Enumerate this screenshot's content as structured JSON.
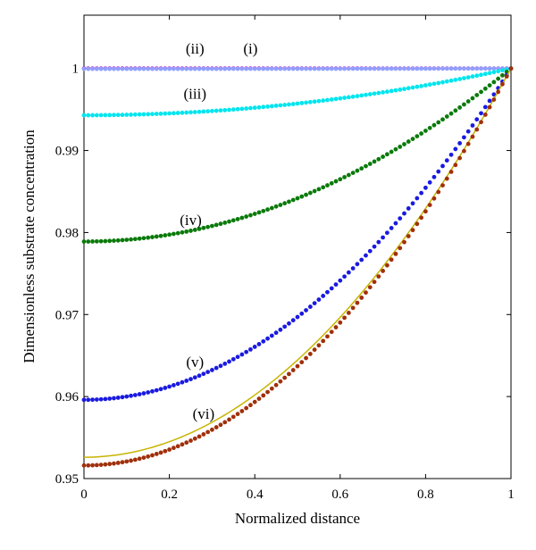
{
  "chart_data": {
    "type": "scatter",
    "title": "",
    "xlabel": "Normalized distance",
    "ylabel": "Dimensionless substrate concentration",
    "xlim": [
      0,
      1
    ],
    "ylim": [
      0.95,
      1.0065
    ],
    "xticks": [
      "0",
      "0.2",
      "0.4",
      "0.6",
      "0.8",
      "1"
    ],
    "yticks": [
      "0.95",
      "0.96",
      "0.97",
      "0.98",
      "0.99",
      "1"
    ],
    "grid": false,
    "legend": "none",
    "series": [
      {
        "name": "(i)",
        "style": "dots",
        "color": "#c020c0",
        "x": [
          0,
          1
        ],
        "y": [
          1.0,
          1.0
        ],
        "shape": "linear"
      },
      {
        "name": "(ii)",
        "style": "dots",
        "color": "#90a0ff",
        "x": [
          0,
          1
        ],
        "y": [
          0.99995,
          1.0
        ],
        "shape": "parabolic"
      },
      {
        "name": "(iii)",
        "style": "dots",
        "color": "#00e5ee",
        "x": [
          0,
          1
        ],
        "y": [
          0.9943,
          1.0
        ],
        "shape": "parabolic"
      },
      {
        "name": "(iv)",
        "style": "dots",
        "color": "#0a7a0a",
        "x": [
          0,
          1
        ],
        "y": [
          0.9789,
          1.0
        ],
        "shape": "parabolic"
      },
      {
        "name": "(v)",
        "style": "dots",
        "color": "#1a1ae0",
        "x": [
          0,
          1
        ],
        "y": [
          0.9596,
          1.0
        ],
        "shape": "parabolic"
      },
      {
        "name": "(vi)",
        "style": "line",
        "color": "#c8b400",
        "x": [
          0,
          1
        ],
        "y": [
          0.9526,
          1.0
        ],
        "shape": "parabolic"
      },
      {
        "name": "(vi)",
        "style": "dots",
        "color": "#a0300a",
        "x": [
          0,
          1
        ],
        "y": [
          0.9516,
          1.0
        ],
        "shape": "parabolic"
      }
    ],
    "annotations": [
      {
        "text": "(i)",
        "x": 0.39,
        "y": 1.0018
      },
      {
        "text": "(ii)",
        "x": 0.26,
        "y": 1.0018
      },
      {
        "text": "(iii)",
        "x": 0.26,
        "y": 0.9963
      },
      {
        "text": "(iv)",
        "x": 0.25,
        "y": 0.9809
      },
      {
        "text": "(v)",
        "x": 0.26,
        "y": 0.9636
      },
      {
        "text": "(vi)",
        "x": 0.28,
        "y": 0.9573
      }
    ]
  }
}
